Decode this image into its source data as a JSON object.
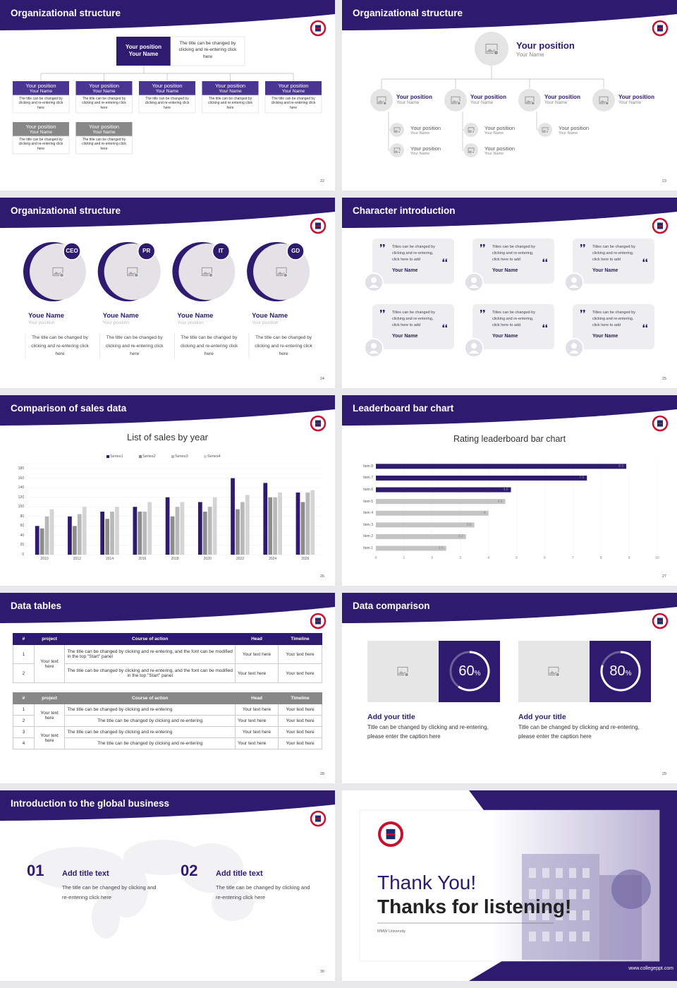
{
  "slides": [
    {
      "title": "Organizational structure",
      "page": "22",
      "top": {
        "position": "Your position",
        "name": "Your Name",
        "note": "The title can be changed by clicking and re-entering click here"
      },
      "boxes": [
        {
          "position": "Your position",
          "name": "Your Name",
          "note": "The title can be changed by clicking and re-entering click here"
        },
        {
          "position": "Your position",
          "name": "Your Name",
          "note": "The title can be changed by clicking and re-entering click here"
        },
        {
          "position": "Your position",
          "name": "Your Name",
          "note": "The title can be changed by clicking and re-entering click here"
        },
        {
          "position": "Your position",
          "name": "Your Name",
          "note": "The title can be changed by clicking and re-entering click here"
        },
        {
          "position": "Your position",
          "name": "Your Name",
          "note": "The title can be changed by clicking and re-entering click here"
        },
        {
          "position": "Your position",
          "name": "Your Name",
          "note": "The title can be changed by clicking and re-entering click here"
        },
        {
          "position": "Your position",
          "name": "Your Name",
          "note": "The title can be changed by clicking and re-entering click here"
        }
      ]
    },
    {
      "title": "Organizational structure",
      "page": "23",
      "top": {
        "position": "Your position",
        "name": "Your Name"
      },
      "level1": [
        {
          "position": "Your position",
          "name": "Your Name"
        },
        {
          "position": "Your position",
          "name": "Your Name"
        },
        {
          "position": "Your position",
          "name": "Your Name"
        },
        {
          "position": "Your position",
          "name": "Your Name"
        }
      ],
      "level2": [
        {
          "position": "Your position",
          "name": "Your Name"
        },
        {
          "position": "Your position",
          "name": "Your Name"
        },
        {
          "position": "Your position",
          "name": "Your Name"
        },
        {
          "position": "Your position",
          "name": "Your Name"
        },
        {
          "position": "Your position",
          "name": "Your Name"
        }
      ]
    },
    {
      "title": "Organizational structure",
      "page": "24",
      "cards": [
        {
          "badge": "CEO",
          "name": "Youe Name",
          "position": "Your position",
          "note": "The title can be changed by clicking and re-entering click here"
        },
        {
          "badge": "PR",
          "name": "Youe Name",
          "position": "Your position",
          "note": "The title can be changed by clicking and re-entering click here"
        },
        {
          "badge": "IT",
          "name": "Youe Name",
          "position": "Your position",
          "note": "The title can be changed by clicking and re-entering click here"
        },
        {
          "badge": "GD",
          "name": "Youe Name",
          "position": "Your position",
          "note": "The title can be changed by clicking and re-entering click here"
        }
      ]
    },
    {
      "title": "Character introduction",
      "page": "25",
      "quotes": [
        {
          "text": "Titles can be changed by clicking and re-entering, click here to add",
          "name": "Your Name"
        },
        {
          "text": "Titles can be changed by clicking and re-entering, click here to add",
          "name": "Your Name"
        },
        {
          "text": "Titles can be changed by clicking and re-entering, click here to add",
          "name": "Your Name"
        },
        {
          "text": "Titles can be changed by clicking and re-entering, click here to add",
          "name": "Your Name"
        },
        {
          "text": "Titles can be changed by clicking and re-entering, click here to add",
          "name": "Your Name"
        },
        {
          "text": "Titles can be changed by clicking and re-entering, click here to add",
          "name": "Your Name"
        }
      ]
    },
    {
      "title": "Comparison of sales data",
      "page": "26",
      "chart": {
        "type": "bar",
        "title": "List of sales by year",
        "categories": [
          "2010",
          "2012",
          "2014",
          "2016",
          "2018",
          "2020",
          "2022",
          "2024",
          "2026"
        ],
        "series": [
          {
            "name": "Series1",
            "color": "#2e1a6e",
            "values": [
              60,
              80,
              90,
              100,
              120,
              110,
              160,
              150,
              130
            ]
          },
          {
            "name": "Series2",
            "color": "#8c8c8c",
            "values": [
              55,
              60,
              75,
              90,
              80,
              90,
              95,
              120,
              110
            ]
          },
          {
            "name": "Series3",
            "color": "#b8b8b8",
            "values": [
              80,
              85,
              90,
              90,
              100,
              100,
              110,
              120,
              130
            ]
          },
          {
            "name": "Series4",
            "color": "#d4d4d4",
            "values": [
              95,
              100,
              100,
              110,
              110,
              120,
              125,
              130,
              135
            ]
          }
        ],
        "ylim": [
          0,
          180
        ],
        "yticks": [
          0,
          20,
          40,
          60,
          80,
          100,
          120,
          140,
          160,
          180
        ],
        "grid": true,
        "legend": "top"
      }
    },
    {
      "title": "Leaderboard bar chart",
      "page": "27",
      "chart": {
        "type": "barh",
        "title": "Rating leaderboard bar chart",
        "categories": [
          "Item 1",
          "Item 2",
          "Item 3",
          "Item 4",
          "Item 5",
          "Item 6",
          "Item 7",
          "Item 8"
        ],
        "values": [
          2.5,
          3.2,
          3.5,
          4,
          4.6,
          4.8,
          7.5,
          8.9
        ],
        "colors": [
          "#c4c4c4",
          "#c4c4c4",
          "#c4c4c4",
          "#c4c4c4",
          "#c4c4c4",
          "#2e1a6e",
          "#2e1a6e",
          "#2e1a6e"
        ],
        "xlim": [
          0,
          10
        ],
        "xticks": [
          0,
          1,
          2,
          3,
          4,
          5,
          6,
          7,
          8,
          9,
          10
        ],
        "grid": true
      }
    },
    {
      "title": "Data tables",
      "page": "28",
      "tables": [
        {
          "header": [
            "#",
            "project",
            "Course of action",
            "Head",
            "Timeline"
          ],
          "groups": [
            {
              "project": "Your text here",
              "rows": [
                [
                  "1",
                  "The title can be changed by clicking and re-entering, and the font can be modified in the top \"Start\" panel",
                  "Your text here",
                  "Your text here"
                ],
                [
                  "2",
                  "The title can be changed by clicking and re-entering, and the font can be modified in the top \"Start\" panel",
                  "Your text here",
                  "Your text here"
                ]
              ]
            }
          ]
        },
        {
          "header": [
            "#",
            "project",
            "Course of action",
            "Head",
            "Timeline"
          ],
          "groups": [
            {
              "project": "Your text here",
              "rows": [
                [
                  "1",
                  "The title can be changed by clicking and re-entering",
                  "Your text here",
                  "Your text here"
                ],
                [
                  "2",
                  "The title can be changed by clicking and re-entering",
                  "Your text here",
                  "Your text here"
                ]
              ]
            },
            {
              "project": "Your text here",
              "rows": [
                [
                  "3",
                  "The title can be changed by clicking and re-entering",
                  "Your text here",
                  "Your text here"
                ],
                [
                  "4",
                  "The title can be changed by clicking and re-entering",
                  "Your text here",
                  "Your text here"
                ]
              ]
            }
          ]
        }
      ]
    },
    {
      "title": "Data comparison",
      "page": "29",
      "items": [
        {
          "value": 60,
          "unit": "%",
          "title": "Add your title",
          "text": "Title can be changed by clicking and re-entering, please enter the caption here"
        },
        {
          "value": 80,
          "unit": "%",
          "title": "Add your title",
          "text": "Title can be changed by clicking and re-entering, please enter the caption here"
        }
      ]
    },
    {
      "title": "Introduction to the global business",
      "page": "30",
      "items": [
        {
          "number": "01",
          "title": "Add title text",
          "text": "The title can be changed by clicking and re-entering click here"
        },
        {
          "number": "02",
          "title": "Add title text",
          "text": "The title can be changed by clicking and re-entering click here"
        }
      ]
    },
    {
      "thanks": "Thank You!",
      "subtitle": "Thanks for listening!",
      "university": "MMW University",
      "website": "www.collegeppt.com"
    }
  ]
}
